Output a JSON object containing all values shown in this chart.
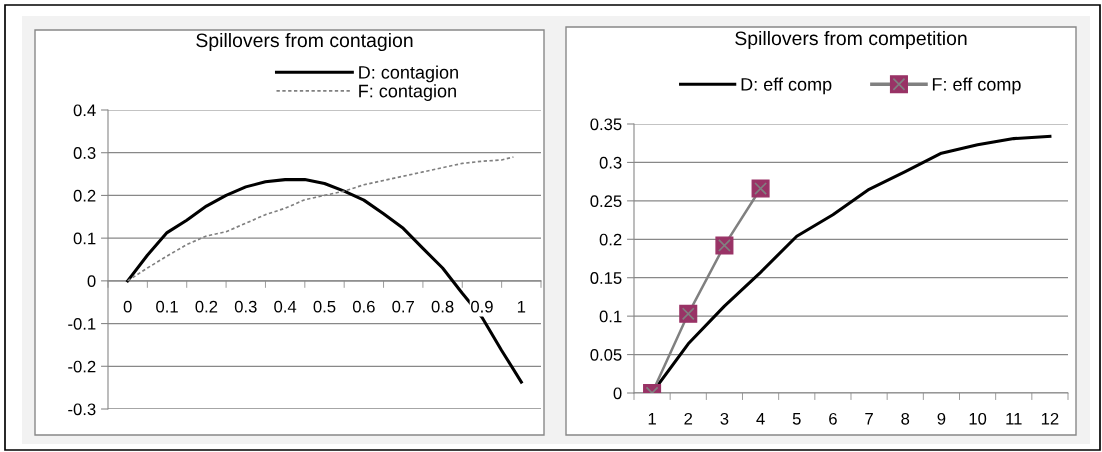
{
  "chart_data": [
    {
      "type": "line",
      "title": "Spillovers from contagion",
      "xlim": [
        -0.05,
        1.05
      ],
      "xticks": [
        {
          "value": -0.05,
          "label": null
        },
        0,
        {
          "value": 0.05,
          "label": null
        },
        0.1,
        {
          "value": 0.15,
          "label": null
        },
        0.2,
        {
          "value": 0.25,
          "label": null
        },
        0.3,
        {
          "value": 0.35,
          "label": null
        },
        0.4,
        {
          "value": 0.45,
          "label": null
        },
        0.5,
        {
          "value": 0.55,
          "label": null
        },
        0.6,
        {
          "value": 0.65,
          "label": null
        },
        0.7,
        {
          "value": 0.75,
          "label": null
        },
        0.8,
        {
          "value": 0.85,
          "label": null
        },
        0.9,
        {
          "value": 0.95,
          "label": null
        },
        1,
        {
          "value": 1.05,
          "label": null
        }
      ],
      "ylim": [
        -0.3,
        0.4
      ],
      "yticks": [
        -0.3,
        -0.2,
        -0.1,
        0,
        0.1,
        0.2,
        0.3,
        0.4
      ],
      "grid": "y",
      "legend": "top",
      "marker": "none",
      "series": [
        {
          "name": "D: contagion",
          "color": "#000000",
          "line_style": "solid",
          "x": [
            0,
            0.05,
            0.1,
            0.15,
            0.2,
            0.25,
            0.3,
            0.35,
            0.4,
            0.45,
            0.5,
            0.55,
            0.6,
            0.65,
            0.7,
            0.75,
            0.8,
            0.85,
            0.9,
            0.95,
            1
          ],
          "values": [
            0,
            0.06,
            0.113,
            0.142,
            0.175,
            0.2,
            0.22,
            0.232,
            0.237,
            0.237,
            0.228,
            0.21,
            0.189,
            0.157,
            0.123,
            0.076,
            0.03,
            -0.029,
            -0.085,
            -0.163,
            -0.237
          ]
        },
        {
          "name": "F: contagion",
          "color": "#808080",
          "line_style": "dashed",
          "x": [
            0,
            0.05,
            0.1,
            0.15,
            0.2,
            0.25,
            0.3,
            0.35,
            0.4,
            0.45,
            0.5,
            0.55,
            0.6,
            0.65,
            0.7,
            0.75,
            0.8,
            0.85,
            0.9,
            0.95,
            0.98
          ],
          "values": [
            0,
            0.03,
            0.058,
            0.085,
            0.105,
            0.115,
            0.135,
            0.155,
            0.17,
            0.19,
            0.2,
            0.21,
            0.225,
            0.235,
            0.245,
            0.255,
            0.265,
            0.275,
            0.28,
            0.283,
            0.29
          ]
        }
      ]
    },
    {
      "type": "line",
      "title": "Spillovers from competition",
      "categories": [
        "1",
        "2",
        "3",
        "4",
        "5",
        "6",
        "7",
        "8",
        "9",
        "10",
        "11",
        "12"
      ],
      "ylim": [
        0,
        0.35
      ],
      "yticks": [
        0,
        0.05,
        0.1,
        0.15,
        0.2,
        0.25,
        0.3,
        0.35
      ],
      "grid": "y",
      "legend": "top",
      "marker": "none",
      "series": [
        {
          "name": "D: eff comp",
          "color": "#000000",
          "line_style": "solid",
          "values": [
            0,
            0.064,
            0.113,
            0.157,
            0.204,
            0.232,
            0.265,
            0.288,
            0.312,
            0.323,
            0.331,
            0.334
          ]
        },
        {
          "name": "F: eff comp",
          "color": "#808080",
          "line_style": "solid",
          "marker": "square",
          "colors": [
            "#993366",
            "#993366",
            "#993366",
            "#993366",
            null,
            null,
            null,
            null,
            null,
            null,
            null,
            null
          ],
          "values": [
            0,
            0.103,
            0.192,
            0.266,
            null,
            null,
            null,
            null,
            null,
            null,
            null,
            null
          ]
        }
      ]
    }
  ]
}
